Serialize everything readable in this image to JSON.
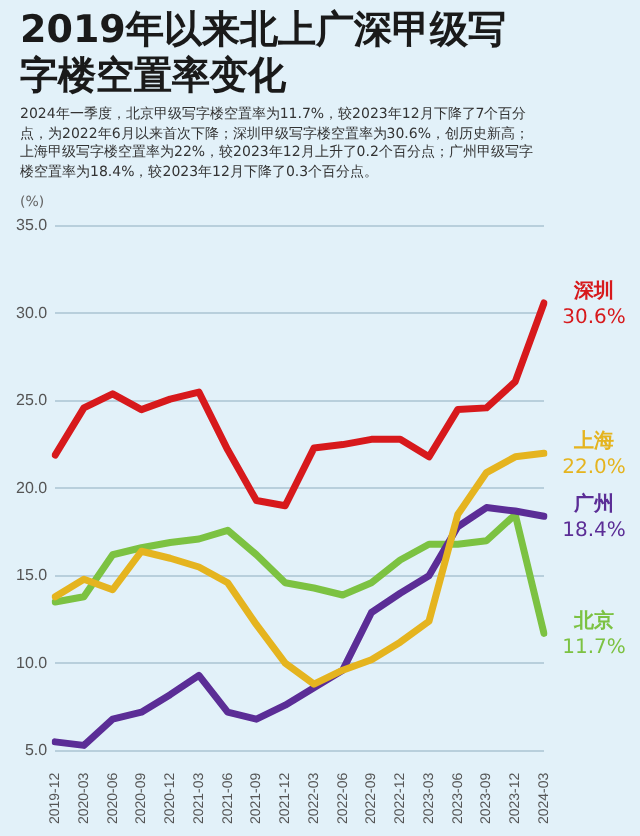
{
  "chart_data": {
    "type": "line",
    "title": "2019年以来北上广深甲级写字楼空置率变化",
    "subtitle": "2024年一季度，北京甲级写字楼空置率为11.7%，较2023年12月下降了7个百分点，为2022年6月以来首次下降；深圳甲级写字楼空置率为30.6%，创历史新高；上海甲级写字楼空置率为22%，较2023年12月上升了0.2个百分点；广州甲级写字楼空置率为18.4%，较2023年12月下降了0.3个百分点。",
    "ylabel": "(%)",
    "categories": [
      "2019-12",
      "2020-03",
      "2020-06",
      "2020-09",
      "2020-12",
      "2021-03",
      "2021-06",
      "2021-09",
      "2021-12",
      "2022-03",
      "2022-06",
      "2022-09",
      "2022-12",
      "2023-03",
      "2023-06",
      "2023-09",
      "2023-12",
      "2024-03"
    ],
    "series": [
      {
        "name": "深圳",
        "color": "#d7191c",
        "values": [
          21.9,
          24.6,
          25.4,
          24.5,
          25.1,
          25.5,
          22.2,
          19.3,
          19.0,
          22.3,
          22.5,
          22.8,
          22.8,
          21.8,
          24.5,
          24.6,
          26.1,
          30.6
        ],
        "value_labels": [
          null,
          null,
          null,
          null,
          null,
          null,
          null,
          null,
          null,
          null,
          null,
          null,
          null,
          null,
          null,
          null,
          null,
          "30.6%"
        ]
      },
      {
        "name": "上海",
        "color": "#e5b41f",
        "values": [
          13.8,
          14.8,
          14.2,
          16.4,
          16.0,
          15.5,
          14.6,
          12.2,
          10.0,
          8.8,
          9.6,
          10.2,
          11.2,
          12.4,
          18.5,
          20.9,
          21.8,
          22.0
        ],
        "value_labels": [
          null,
          null,
          null,
          null,
          null,
          null,
          null,
          null,
          null,
          null,
          null,
          null,
          null,
          null,
          null,
          null,
          null,
          "22.0%"
        ]
      },
      {
        "name": "广州",
        "color": "#5b2d96",
        "values": [
          5.5,
          5.3,
          6.8,
          7.2,
          8.2,
          9.3,
          7.2,
          6.8,
          7.6,
          8.6,
          9.6,
          12.9,
          14.0,
          15.0,
          17.8,
          18.9,
          18.7,
          18.4
        ],
        "value_labels": [
          null,
          null,
          null,
          null,
          null,
          null,
          null,
          null,
          null,
          null,
          null,
          null,
          null,
          null,
          null,
          null,
          null,
          "18.4%"
        ]
      },
      {
        "name": "北京",
        "color": "#7cc242",
        "values": [
          13.5,
          13.8,
          16.2,
          16.6,
          16.9,
          17.1,
          17.6,
          16.2,
          14.6,
          14.3,
          13.9,
          14.6,
          15.9,
          16.8,
          16.8,
          17.0,
          18.5,
          11.7
        ],
        "value_labels": [
          null,
          null,
          null,
          null,
          null,
          null,
          null,
          null,
          null,
          null,
          null,
          null,
          null,
          null,
          null,
          null,
          null,
          "11.7%"
        ]
      }
    ],
    "ylim": [
      5,
      35
    ],
    "yticks": [
      {
        "value": 5,
        "label": "5.0"
      },
      {
        "value": 10,
        "label": "10.0"
      },
      {
        "value": 15,
        "label": "15.0"
      },
      {
        "value": 20,
        "label": "20.0"
      },
      {
        "value": 25,
        "label": "25.0"
      },
      {
        "value": 30,
        "label": "30.0"
      },
      {
        "value": 35,
        "label": "35.0"
      }
    ],
    "grid": "y",
    "legend": false,
    "marker": "none",
    "line_style": "solid"
  }
}
